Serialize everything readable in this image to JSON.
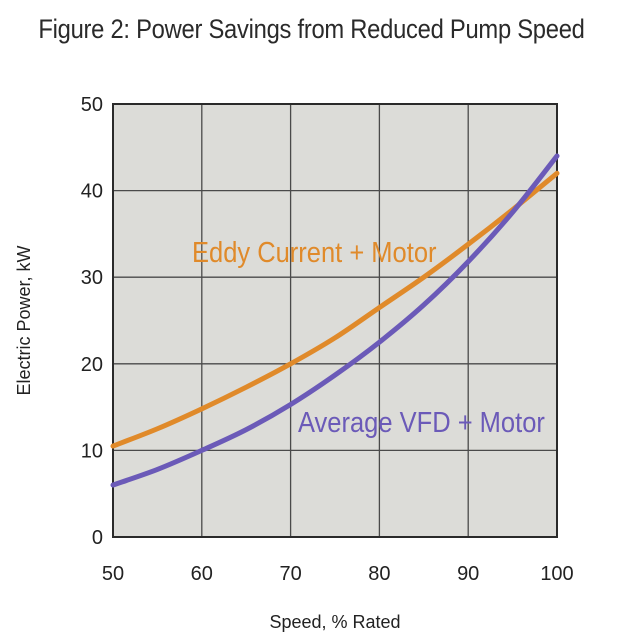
{
  "chart_data": {
    "type": "line",
    "title": "Figure 2:  Power Savings from Reduced Pump Speed",
    "xlabel": "Speed, % Rated",
    "ylabel": "Electric Power,  kW",
    "xlim": [
      50,
      100
    ],
    "ylim": [
      0,
      50
    ],
    "xticks": [
      50,
      60,
      70,
      80,
      90,
      100
    ],
    "yticks": [
      0,
      10,
      20,
      30,
      40,
      50
    ],
    "grid": true,
    "legend": "inline labels",
    "series": [
      {
        "name": "Eddy Current + Motor",
        "color": "#e08a2a",
        "x": [
          50,
          55,
          60,
          65,
          70,
          75,
          80,
          85,
          90,
          95,
          100
        ],
        "y": [
          10.5,
          12.5,
          14.8,
          17.3,
          20,
          23,
          26.5,
          30,
          33.8,
          37.8,
          42
        ]
      },
      {
        "name": "Average VFD + Motor",
        "color": "#6b5ab8",
        "x": [
          50,
          55,
          60,
          65,
          70,
          75,
          80,
          85,
          90,
          95,
          100
        ],
        "y": [
          6,
          7.8,
          10,
          12.4,
          15.3,
          18.7,
          22.5,
          26.8,
          31.8,
          37.5,
          44
        ]
      }
    ]
  },
  "colors": {
    "plot_background": "#dcdcd8",
    "grid": "#4a4a4a"
  }
}
